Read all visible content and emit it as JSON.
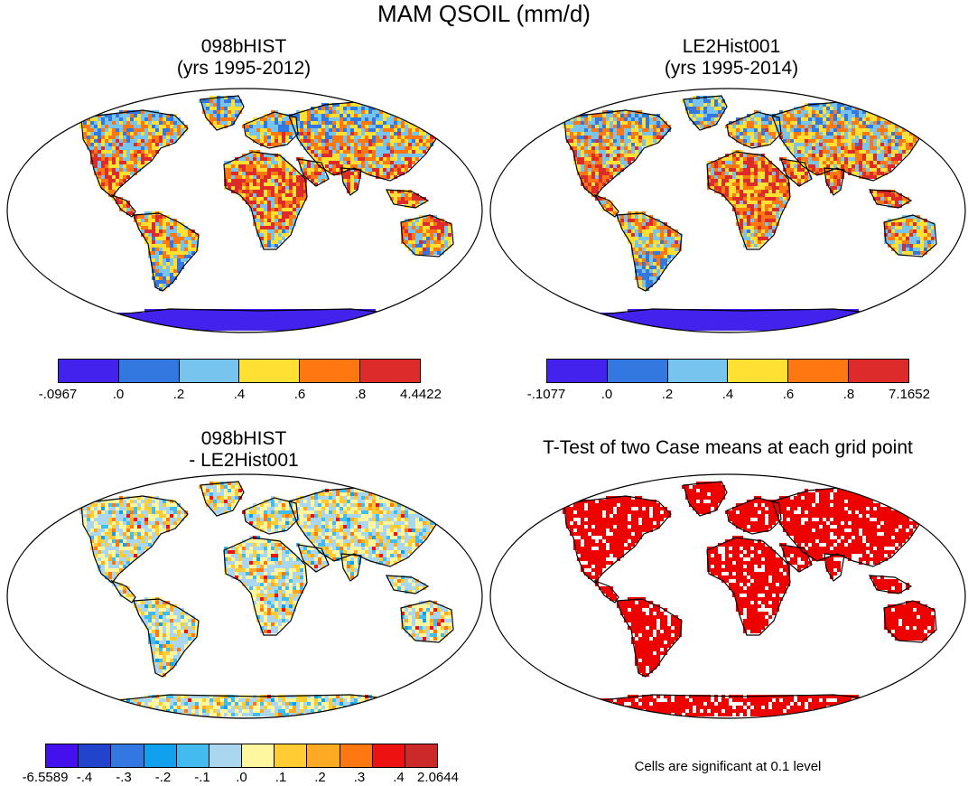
{
  "title": "MAM QSOIL (mm/d)",
  "colors": {
    "ocean": "#ffffff",
    "outline": "#000000",
    "significant": "#ee0000"
  },
  "panels": [
    {
      "id": "case1",
      "title": "098bHIST\n(yrs 1995-2012)",
      "palette_name": "case1",
      "colorbar": {
        "colors": [
          "#4422ee",
          "#3377e0",
          "#77c4ee",
          "#ffe033",
          "#ff7711",
          "#dd2a2a"
        ],
        "labels": [
          "-.0967",
          ".0",
          ".2",
          ".4",
          ".6",
          ".8",
          "4.4422"
        ]
      }
    },
    {
      "id": "case2",
      "title": "LE2Hist001\n(yrs 1995-2014)",
      "palette_name": "case2",
      "colorbar": {
        "colors": [
          "#4422ee",
          "#3377e0",
          "#77c4ee",
          "#ffe033",
          "#ff7711",
          "#dd2a2a"
        ],
        "labels": [
          "-.1077",
          ".0",
          ".2",
          ".4",
          ".6",
          ".8",
          "7.1652"
        ]
      }
    },
    {
      "id": "diff",
      "title": "098bHIST\n- LE2Hist001",
      "palette_name": "diff",
      "colorbar": {
        "colors": [
          "#4411ee",
          "#2244cc",
          "#3377e0",
          "#11a0ee",
          "#44bbee",
          "#aad6f0",
          "#fff6a0",
          "#ffcc33",
          "#ffaa22",
          "#ff7711",
          "#ee1111",
          "#cc2a2a"
        ],
        "labels": [
          "-6.5589",
          "-.4",
          "-.3",
          "-.2",
          "-.1",
          ".0",
          ".1",
          ".2",
          ".3",
          ".4",
          "2.0644"
        ]
      }
    },
    {
      "id": "ttest",
      "title": "T-Test of two Case means at each grid point",
      "note": "Cells are significant at 0.1 level"
    }
  ]
}
